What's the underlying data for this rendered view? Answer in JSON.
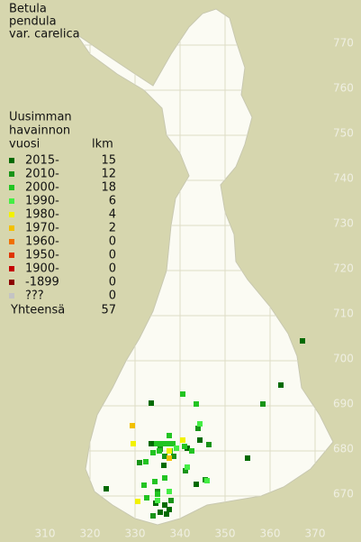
{
  "chart_data": {
    "type": "scatter",
    "title": [
      "Betula",
      "pendula",
      "var. carelica"
    ],
    "legend_title": [
      "Uusimman",
      "havainnon",
      "vuosi"
    ],
    "count_header": "lkm",
    "xlim": [
      300,
      380
    ],
    "ylim": [
      660,
      780
    ],
    "xticks": [
      310,
      320,
      330,
      340,
      350,
      360,
      370
    ],
    "yticks": [
      670,
      680,
      690,
      700,
      710,
      720,
      730,
      740,
      750,
      760,
      770
    ],
    "grid": true,
    "series": [
      {
        "name": "2015-",
        "color": "#006a00",
        "count": 15,
        "x": [
          367.2,
          362.4,
          333.6,
          323.6,
          355,
          344.4,
          333.6,
          336.4,
          341.6,
          336.6,
          337.6,
          335.6,
          337,
          334.6,
          343.6
        ],
        "y": [
          704.4,
          694.6,
          690.6,
          671.6,
          678.4,
          682.4,
          681.6,
          676.8,
          680.6,
          668,
          667,
          666.4,
          666,
          668.4,
          672.6
        ]
      },
      {
        "name": "2010-",
        "color": "#189418",
        "count": 12,
        "x": [
          358.4,
          346.4,
          331,
          336.6,
          338.6,
          345.6,
          341.2,
          335,
          338,
          334,
          344,
          335.6
        ],
        "y": [
          690.4,
          681.4,
          677.4,
          678.8,
          678.8,
          673.6,
          675.6,
          671,
          669,
          665.6,
          685,
          680.4
        ]
      },
      {
        "name": "2000-",
        "color": "#22c422",
        "count": 18,
        "x": [
          340.6,
          343.6,
          334.8,
          336,
          337.2,
          338.4,
          335.4,
          337.8,
          337.6,
          334,
          332.4,
          336.6,
          334.4,
          332,
          332.6,
          335,
          342.6,
          341
        ],
        "y": [
          692.6,
          690.4,
          681.6,
          681.6,
          681.6,
          681.6,
          680,
          680,
          683.4,
          679.6,
          677.6,
          674,
          673.2,
          672.4,
          669.6,
          670.4,
          680,
          681
        ]
      },
      {
        "name": "1990-",
        "color": "#44ee44",
        "count": 6,
        "x": [
          344.4,
          346,
          341.6,
          337.6,
          335,
          339.2
        ],
        "y": [
          686,
          673.4,
          676.4,
          671,
          669,
          680.6
        ]
      },
      {
        "name": "1980-",
        "color": "#f2f200",
        "count": 4,
        "x": [
          329.6,
          340.6,
          330.6,
          337.6
        ],
        "y": [
          681.6,
          682.4,
          668.8,
          680
        ]
      },
      {
        "name": "1970-",
        "color": "#f2c000",
        "count": 2,
        "x": [
          329.4,
          337.6
        ],
        "y": [
          685.6,
          678.4
        ]
      },
      {
        "name": "1960-",
        "color": "#f07000",
        "count": 0,
        "x": [],
        "y": []
      },
      {
        "name": "1950-",
        "color": "#e03400",
        "count": 0,
        "x": [],
        "y": []
      },
      {
        "name": "1900-",
        "color": "#c40000",
        "count": 0,
        "x": [],
        "y": []
      },
      {
        "name": "-1899",
        "color": "#8c0000",
        "count": 0,
        "x": [],
        "y": []
      },
      {
        "name": "???",
        "color": "#c4c4c4",
        "count": 0,
        "x": [],
        "y": []
      }
    ],
    "total_label": "Yhteensä",
    "total": 57
  }
}
